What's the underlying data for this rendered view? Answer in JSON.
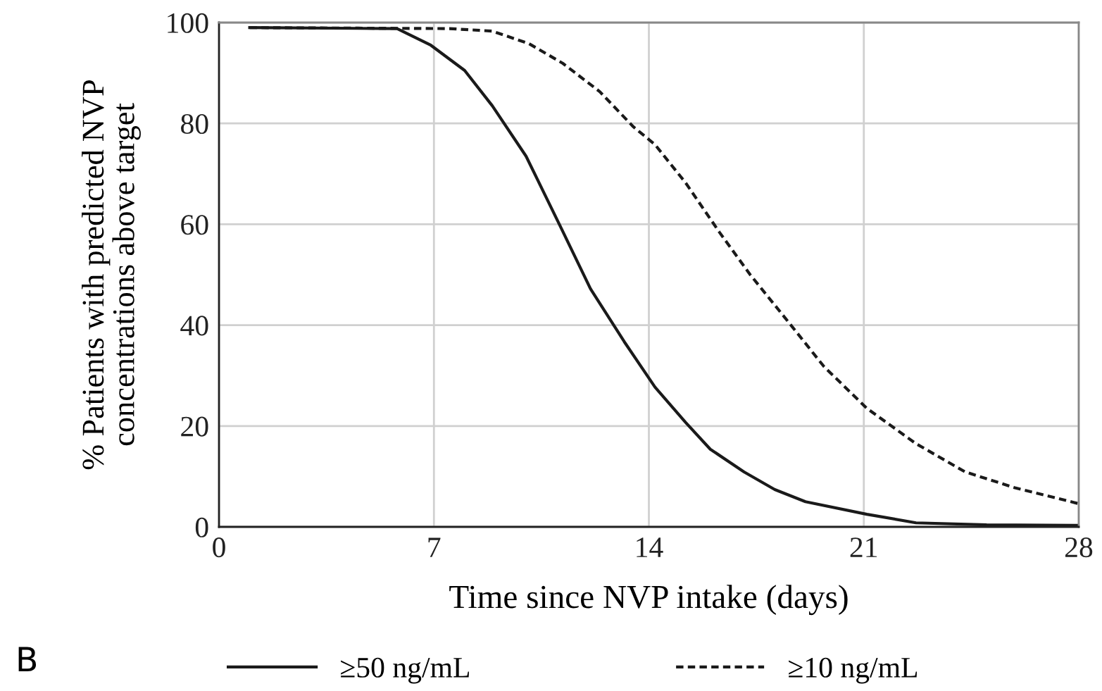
{
  "chart_data": {
    "type": "line",
    "xlabel": "Time since NVP intake (days)",
    "ylabel": "% Patients with predicted NVP\nconcentrations above target",
    "annotations": [
      "B"
    ],
    "xlim": [
      0,
      28
    ],
    "xticks": [
      0,
      7,
      14,
      21,
      28
    ],
    "ylim": [
      0,
      100
    ],
    "yticks": [
      0,
      20,
      40,
      60,
      80,
      100
    ],
    "grid": true,
    "legend": "bottom",
    "marker": "none",
    "series": [
      {
        "name": "≥50 ng/mL",
        "color": "#1a1a1a",
        "line_style": "solid",
        "x": [
          1,
          5.8,
          6.9,
          8.0,
          8.9,
          10.0,
          11.1,
          12.1,
          13.2,
          14.2,
          15.2,
          16.0,
          17.1,
          18.1,
          19.1,
          21.1,
          22.7,
          25,
          28
        ],
        "values": [
          99,
          98.8,
          95.5,
          90.5,
          83.5,
          73.5,
          59.8,
          47.2,
          36.7,
          27.7,
          20.7,
          15.4,
          10.9,
          7.4,
          5.0,
          2.5,
          0.8,
          0.4,
          0.3
        ]
      },
      {
        "name": "≥10 ng/mL",
        "color": "#1a1a1a",
        "line_style": "dotted",
        "x": [
          1,
          7.5,
          8.9,
          10.1,
          11.2,
          12.4,
          13.5,
          14.2,
          15.2,
          16.3,
          17.3,
          18.6,
          19.7,
          21.1,
          22.7,
          24.3,
          25.9,
          28
        ],
        "values": [
          99,
          98.8,
          98.3,
          95.8,
          91.9,
          86.3,
          79.3,
          75.8,
          68.2,
          58.4,
          50,
          40.2,
          31.8,
          23.5,
          16.5,
          10.9,
          7.8,
          4.6
        ]
      }
    ]
  }
}
